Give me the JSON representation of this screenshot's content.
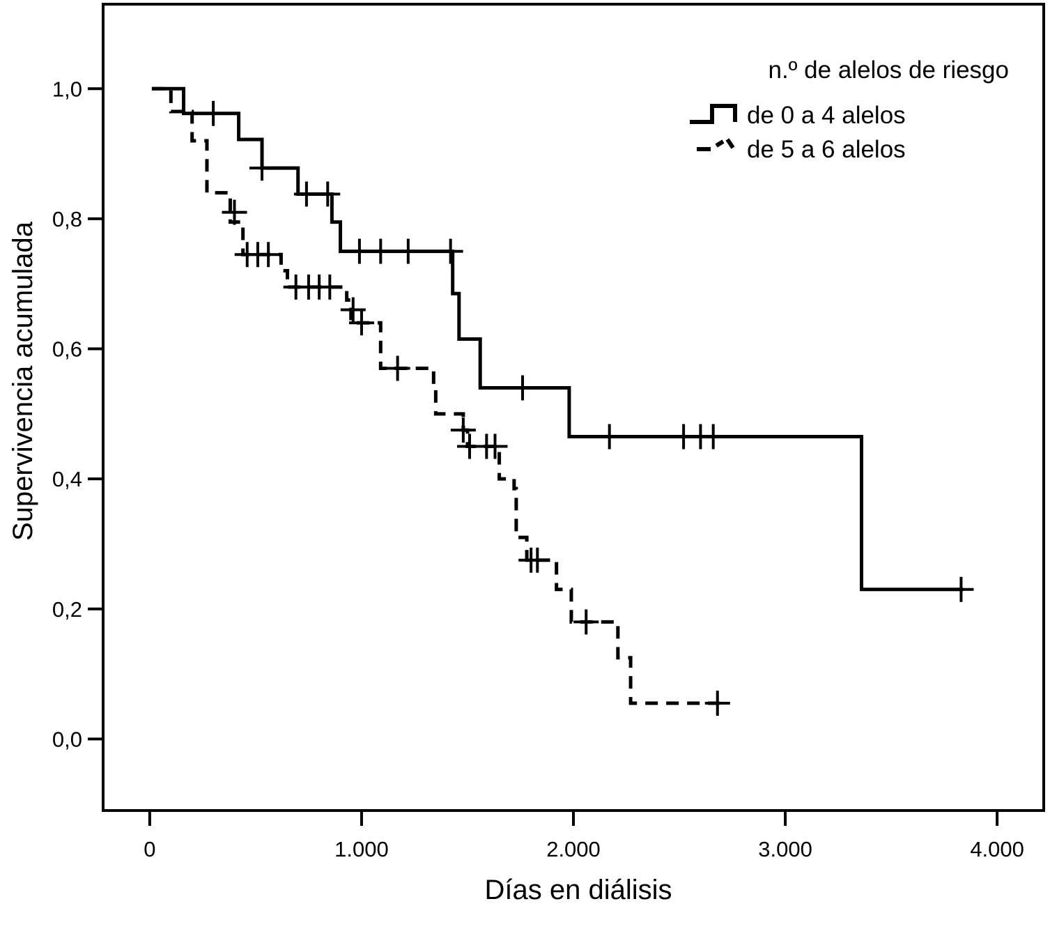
{
  "chart_data": {
    "type": "line",
    "subtype": "kaplan-meier survival curve",
    "title": "",
    "xlabel": "Días en diálisis",
    "ylabel": "Supervivencia acumulada",
    "xlim": [
      -220,
      4220
    ],
    "ylim": [
      -0.11,
      1.13
    ],
    "x_ticks": [
      0,
      1000,
      2000,
      3000,
      4000
    ],
    "x_tick_labels": [
      "0",
      "1.000",
      "2.000",
      "3.000",
      "4.000"
    ],
    "y_ticks": [
      0.0,
      0.2,
      0.4,
      0.6,
      0.8,
      1.0
    ],
    "y_tick_labels": [
      "0,0",
      "0,2",
      "0,4",
      "0,6",
      "0,8",
      "1,0"
    ],
    "grid": false,
    "legend": {
      "title": "n.º de alelos de riesgo",
      "placement": "top-right"
    },
    "series": [
      {
        "name": "de 0 a 4 alelos",
        "style": "solid",
        "color": "#000000",
        "steps": [
          [
            10,
            1.0
          ],
          [
            160,
            0.962
          ],
          [
            420,
            0.922
          ],
          [
            530,
            0.878
          ],
          [
            700,
            0.838
          ],
          [
            860,
            0.795
          ],
          [
            900,
            0.75
          ],
          [
            1430,
            0.685
          ],
          [
            1460,
            0.615
          ],
          [
            1560,
            0.54
          ],
          [
            1980,
            0.465
          ],
          [
            3360,
            0.23
          ],
          [
            3840,
            0.23
          ]
        ],
        "censored": [
          [
            300,
            0.962
          ],
          [
            530,
            0.878
          ],
          [
            740,
            0.838
          ],
          [
            840,
            0.838
          ],
          [
            990,
            0.75
          ],
          [
            1090,
            0.75
          ],
          [
            1220,
            0.75
          ],
          [
            1420,
            0.75
          ],
          [
            1760,
            0.54
          ],
          [
            2170,
            0.465
          ],
          [
            2520,
            0.465
          ],
          [
            2600,
            0.465
          ],
          [
            2660,
            0.465
          ],
          [
            3830,
            0.23
          ]
        ]
      },
      {
        "name": "de 5 a 6 alelos",
        "style": "dashed",
        "color": "#000000",
        "steps": [
          [
            10,
            1.0
          ],
          [
            100,
            0.965
          ],
          [
            200,
            0.92
          ],
          [
            270,
            0.84
          ],
          [
            380,
            0.795
          ],
          [
            440,
            0.745
          ],
          [
            620,
            0.72
          ],
          [
            650,
            0.695
          ],
          [
            930,
            0.675
          ],
          [
            950,
            0.64
          ],
          [
            1090,
            0.57
          ],
          [
            1340,
            0.545
          ],
          [
            1350,
            0.5
          ],
          [
            1480,
            0.475
          ],
          [
            1500,
            0.45
          ],
          [
            1650,
            0.4
          ],
          [
            1720,
            0.385
          ],
          [
            1730,
            0.31
          ],
          [
            1780,
            0.275
          ],
          [
            1920,
            0.23
          ],
          [
            1990,
            0.18
          ],
          [
            2210,
            0.125
          ],
          [
            2270,
            0.055
          ],
          [
            2690,
            0.055
          ]
        ],
        "censored": [
          [
            400,
            0.81
          ],
          [
            460,
            0.745
          ],
          [
            510,
            0.745
          ],
          [
            560,
            0.745
          ],
          [
            690,
            0.695
          ],
          [
            750,
            0.695
          ],
          [
            800,
            0.695
          ],
          [
            850,
            0.695
          ],
          [
            960,
            0.66
          ],
          [
            1000,
            0.64
          ],
          [
            1170,
            0.57
          ],
          [
            1480,
            0.475
          ],
          [
            1510,
            0.45
          ],
          [
            1590,
            0.45
          ],
          [
            1630,
            0.45
          ],
          [
            1800,
            0.275
          ],
          [
            1830,
            0.275
          ],
          [
            2060,
            0.18
          ],
          [
            2680,
            0.055
          ]
        ]
      }
    ]
  }
}
